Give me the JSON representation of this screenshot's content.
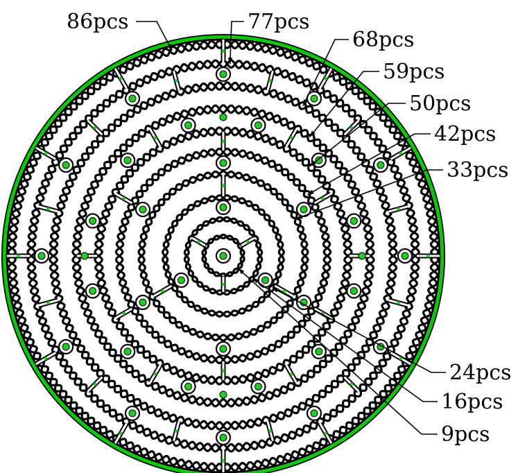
{
  "diagram": {
    "colors": {
      "rim": "#00cc00",
      "ink": "#000000",
      "node": "#22cc22",
      "background": "#ffffff"
    },
    "rings": [
      {
        "id": "ring-9",
        "label": "9pcs",
        "count": 9
      },
      {
        "id": "ring-16",
        "label": "16pcs",
        "count": 16
      },
      {
        "id": "ring-24",
        "label": "24pcs",
        "count": 24
      },
      {
        "id": "ring-33",
        "label": "33pcs",
        "count": 33
      },
      {
        "id": "ring-42",
        "label": "42pcs",
        "count": 42
      },
      {
        "id": "ring-50",
        "label": "50pcs",
        "count": 50
      },
      {
        "id": "ring-59",
        "label": "59pcs",
        "count": 59
      },
      {
        "id": "ring-68",
        "label": "68pcs",
        "count": 68
      },
      {
        "id": "ring-77",
        "label": "77pcs",
        "count": 77
      },
      {
        "id": "ring-86",
        "label": "86pcs",
        "count": 86
      }
    ]
  }
}
